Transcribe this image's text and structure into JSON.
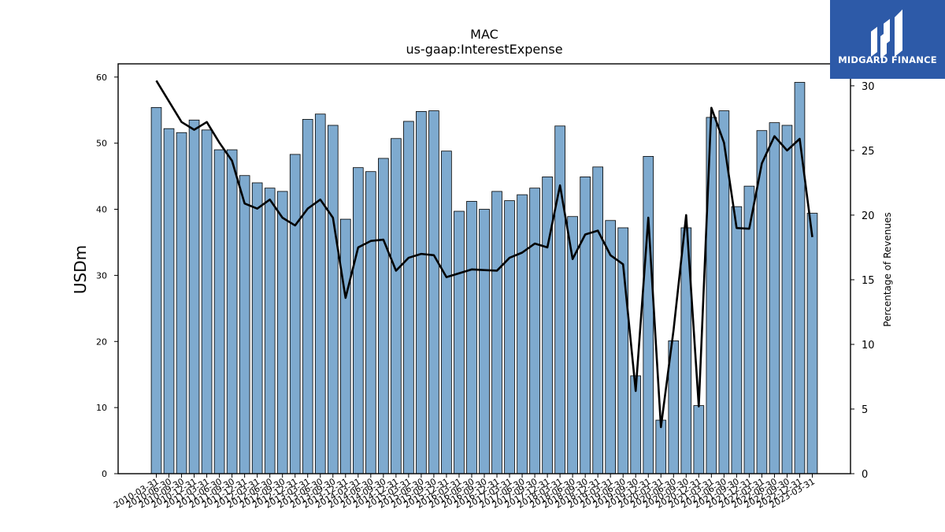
{
  "chart_data": {
    "type": "bar",
    "title": "MAC",
    "subtitle": "us-gaap:InterestExpense",
    "ylabel": "USDm",
    "y2label": "Percentage of Revenues",
    "ylim": [
      0,
      62
    ],
    "y2lim": [
      0,
      31.7
    ],
    "yticks": [
      0,
      10,
      20,
      30,
      40,
      50,
      60
    ],
    "y2ticks": [
      0,
      5,
      10,
      15,
      20,
      25,
      30
    ],
    "grid": false,
    "bar_color": "#7eaacf",
    "line_color": "#000000",
    "categories": [
      "2010-03-31",
      "2010-06-30",
      "2010-09-30",
      "2010-12-31",
      "2011-03-31",
      "2011-06-30",
      "2011-09-30",
      "2011-12-31",
      "2012-03-31",
      "2012-06-30",
      "2012-09-30",
      "2012-12-31",
      "2013-03-31",
      "2013-06-30",
      "2013-09-30",
      "2013-12-31",
      "2014-03-31",
      "2014-06-30",
      "2014-09-30",
      "2014-12-31",
      "2015-03-31",
      "2015-06-30",
      "2015-09-30",
      "2015-12-31",
      "2016-03-31",
      "2016-06-30",
      "2016-09-30",
      "2016-12-31",
      "2017-03-31",
      "2017-06-30",
      "2017-09-30",
      "2017-12-31",
      "2018-03-31",
      "2018-06-30",
      "2018-09-30",
      "2018-12-31",
      "2019-03-31",
      "2019-06-30",
      "2019-09-30",
      "2019-12-31",
      "2020-03-31",
      "2020-06-30",
      "2020-09-30",
      "2020-12-31",
      "2021-03-31",
      "2021-06-30",
      "2021-09-30",
      "2021-12-31",
      "2022-03-31",
      "2022-06-30",
      "2022-09-30",
      "2022-12-31",
      "2023-03-31"
    ],
    "series": [
      {
        "type": "bar",
        "axis": "left",
        "values": [
          55.4,
          52.2,
          51.6,
          53.5,
          52.0,
          49.0,
          49.0,
          45.1,
          44.0,
          43.2,
          42.7,
          48.3,
          53.6,
          54.4,
          52.7,
          38.5,
          46.3,
          45.7,
          47.7,
          50.7,
          53.3,
          54.8,
          54.9,
          48.8,
          39.7,
          41.2,
          40.0,
          42.7,
          41.3,
          42.2,
          43.2,
          44.9,
          52.6,
          38.9,
          44.9,
          46.4,
          38.3,
          37.2,
          14.8,
          48.0,
          8.1,
          20.1,
          37.2,
          10.3,
          53.9,
          54.9,
          40.4,
          43.5,
          51.9,
          53.1,
          52.7,
          59.2,
          39.4
        ]
      },
      {
        "type": "line",
        "axis": "right",
        "values": [
          30.4,
          28.8,
          27.2,
          26.6,
          27.2,
          25.6,
          24.2,
          20.9,
          20.5,
          21.2,
          19.8,
          19.2,
          20.5,
          21.2,
          19.8,
          13.6,
          17.5,
          18.0,
          18.1,
          15.7,
          16.7,
          17.0,
          16.9,
          15.2,
          15.5,
          15.8,
          15.75,
          15.7,
          16.7,
          17.1,
          17.8,
          17.5,
          22.3,
          16.6,
          18.5,
          18.8,
          16.9,
          16.2,
          6.4,
          19.8,
          3.6,
          11.1,
          20.0,
          5.2,
          28.3,
          25.6,
          19.0,
          18.95,
          24.0,
          26.1,
          25.0,
          25.9,
          18.3
        ]
      }
    ]
  },
  "logo": {
    "text": "MIDGARD FINANCE"
  }
}
